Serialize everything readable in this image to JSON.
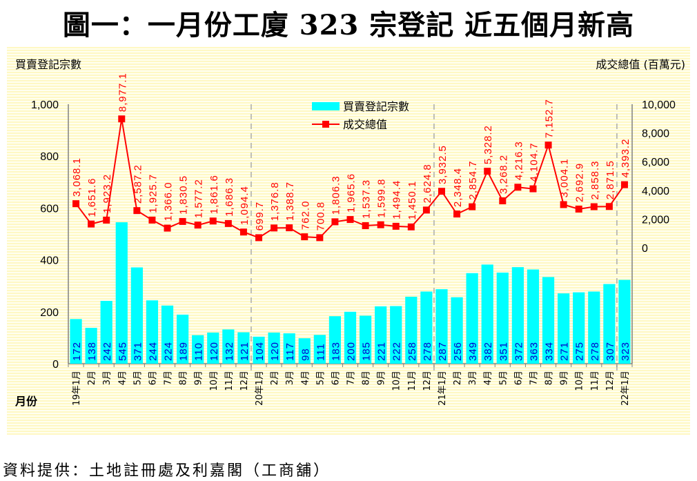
{
  "title": "圖一：一月份工廈 323 宗登記  近五個月新高",
  "source": "資料提供：土地註冊處及利嘉閣（工商舖）",
  "chart_data": {
    "type": "bar+line",
    "title": "圖一：一月份工廈 323 宗登記  近五個月新高",
    "xlabel": "月份",
    "ylabel_left": "買賣登記宗數",
    "ylabel_right": "成交總值 (百萬元)",
    "ylim_left": [
      0,
      1000
    ],
    "yticks_left": [
      "0",
      "200",
      "400",
      "600",
      "800",
      "1,000"
    ],
    "yticks_left_values": [
      0,
      200,
      400,
      600,
      800,
      1000
    ],
    "ylim_right": [
      -8080,
      10000
    ],
    "yticks_right": [
      "0",
      "2,000",
      "4,000",
      "6,000",
      "8,000",
      "10,000"
    ],
    "yticks_right_values": [
      0,
      2000,
      4000,
      6000,
      8000,
      10000
    ],
    "legend_position": "top-center",
    "colors": {
      "bar": "#00FFFF",
      "line": "#FF0000",
      "bar_label": "#0000CC",
      "line_label": "#FF0000",
      "separator": "#AAAAAA"
    },
    "categories": [
      "19年1月",
      "2月",
      "3月",
      "4月",
      "5月",
      "6月",
      "7月",
      "8月",
      "9月",
      "10月",
      "11月",
      "12月",
      "20年1月",
      "2月",
      "3月",
      "4月",
      "5月",
      "6月",
      "7月",
      "8月",
      "9月",
      "10月",
      "11月",
      "12月",
      "21年1月",
      "2月",
      "3月",
      "4月",
      "5月",
      "6月",
      "7月",
      "8月",
      "9月",
      "10月",
      "11月",
      "12月",
      "22年1月"
    ],
    "year_starts": [
      12,
      24,
      36
    ],
    "series": [
      {
        "name": "買賣登記宗數",
        "type": "bar",
        "axis": "left",
        "values": [
          172,
          138,
          242,
          545,
          371,
          244,
          224,
          189,
          110,
          120,
          132,
          121,
          104,
          120,
          117,
          98,
          111,
          183,
          200,
          185,
          221,
          222,
          258,
          278,
          287,
          256,
          349,
          382,
          351,
          372,
          363,
          334,
          271,
          275,
          278,
          307,
          323
        ]
      },
      {
        "name": "成交總值",
        "type": "line",
        "axis": "right",
        "values": [
          3068.1,
          1651.6,
          1923.2,
          8977.1,
          2587.2,
          1925.7,
          1366.0,
          1830.5,
          1577.2,
          1861.6,
          1686.3,
          1094.4,
          699.7,
          1376.8,
          1388.7,
          762.0,
          700.8,
          1806.3,
          1965.6,
          1537.3,
          1599.8,
          1494.4,
          1450.1,
          2624.8,
          3932.5,
          2348.4,
          2854.7,
          5328.2,
          3268.2,
          4216.3,
          4104.7,
          7152.7,
          3004.1,
          2692.9,
          2858.3,
          2871.5,
          4393.2
        ]
      }
    ]
  }
}
